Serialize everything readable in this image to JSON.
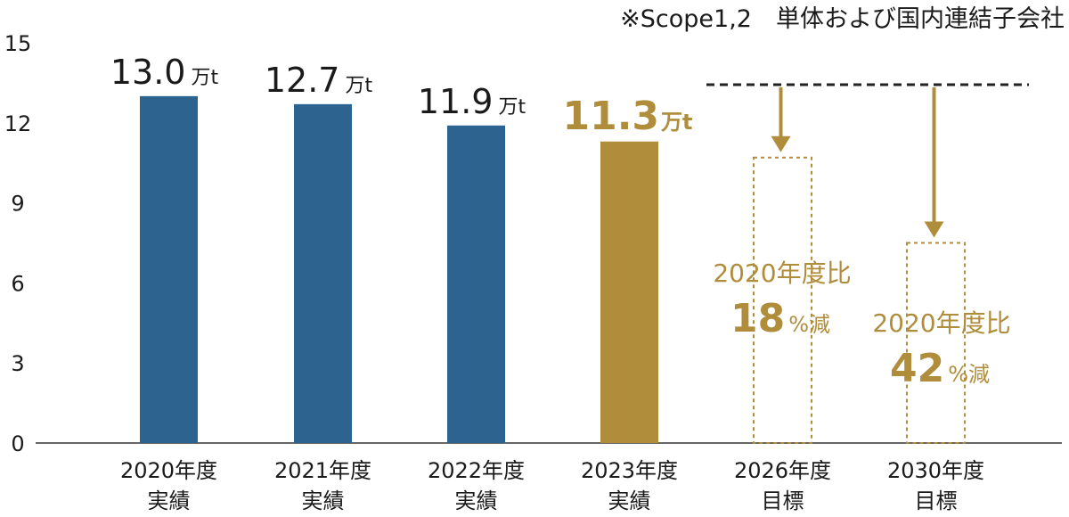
{
  "chart_data": {
    "type": "bar",
    "note": "※Scope1,2　単体および国内連結子会社",
    "ylim": [
      0,
      15
    ],
    "yticks": [
      "0",
      "3",
      "6",
      "9",
      "12",
      "15"
    ],
    "categories": [
      {
        "line1": "2020年度",
        "line2": "実績"
      },
      {
        "line1": "2021年度",
        "line2": "実績"
      },
      {
        "line1": "2022年度",
        "line2": "実績"
      },
      {
        "line1": "2023年度",
        "line2": "実績"
      },
      {
        "line1": "2026年度",
        "line2": "目標"
      },
      {
        "line1": "2030年度",
        "line2": "目標"
      }
    ],
    "values": [
      13.0,
      12.7,
      11.9,
      11.3,
      10.7,
      7.5
    ],
    "kinds": [
      "actual",
      "actual",
      "actual",
      "highlight",
      "target",
      "target"
    ],
    "value_labels": [
      "13.0",
      "12.7",
      "11.9",
      "11.3",
      "",
      ""
    ],
    "unit": "万t",
    "targets": [
      {
        "base": "2020年度比",
        "percent": "18",
        "suffix": "%減"
      },
      {
        "base": "2020年度比",
        "percent": "42",
        "suffix": "%減"
      }
    ],
    "colors": {
      "actual": "#2c638f",
      "highlight": "#b08d3b",
      "target": "#b08d3b",
      "text": "#1a1a1a",
      "axis": "#333333"
    }
  }
}
